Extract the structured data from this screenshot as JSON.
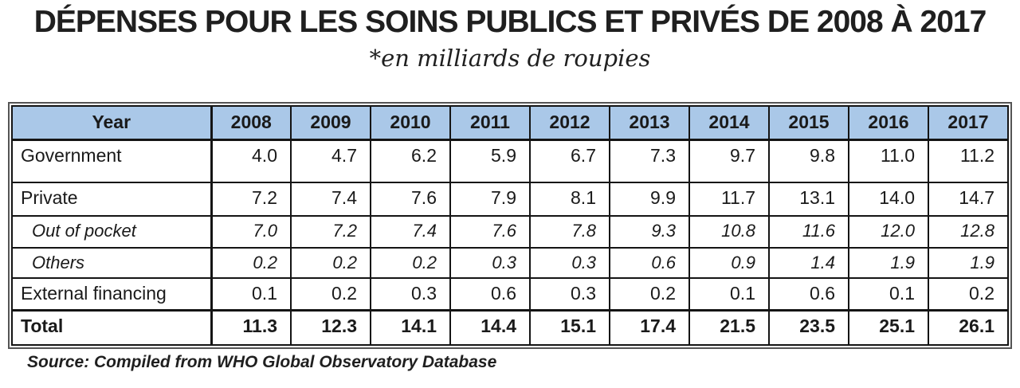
{
  "header": {
    "title": "DÉPENSES POUR LES SOINS PUBLICS ET PRIVÉS DE 2008 À 2017",
    "subtitle": "*en milliards de roupies"
  },
  "table": {
    "corner_label": "Year",
    "years": [
      "2008",
      "2009",
      "2010",
      "2011",
      "2012",
      "2013",
      "2014",
      "2015",
      "2016",
      "2017"
    ],
    "rows": [
      {
        "label": "Government",
        "style": "normal",
        "values": [
          "4.0",
          "4.7",
          "6.2",
          "5.9",
          "6.7",
          "7.3",
          "9.7",
          "9.8",
          "11.0",
          "11.2"
        ]
      },
      {
        "label": "Private",
        "style": "normal",
        "values": [
          "7.2",
          "7.4",
          "7.6",
          "7.9",
          "8.1",
          "9.9",
          "11.7",
          "13.1",
          "14.0",
          "14.7"
        ]
      },
      {
        "label": "Out of pocket",
        "style": "sub",
        "values": [
          "7.0",
          "7.2",
          "7.4",
          "7.6",
          "7.8",
          "9.3",
          "10.8",
          "11.6",
          "12.0",
          "12.8"
        ]
      },
      {
        "label": "Others",
        "style": "sub",
        "values": [
          "0.2",
          "0.2",
          "0.2",
          "0.3",
          "0.3",
          "0.6",
          "0.9",
          "1.4",
          "1.9",
          "1.9"
        ]
      },
      {
        "label": "External financing",
        "style": "normal",
        "values": [
          "0.1",
          "0.2",
          "0.3",
          "0.6",
          "0.3",
          "0.2",
          "0.1",
          "0.6",
          "0.1",
          "0.2"
        ]
      },
      {
        "label": "Total",
        "style": "bold",
        "values": [
          "11.3",
          "12.3",
          "14.1",
          "14.4",
          "15.1",
          "17.4",
          "21.5",
          "23.5",
          "25.1",
          "26.1"
        ]
      }
    ]
  },
  "footer": {
    "source": "Source: Compiled from WHO Global Observatory Database"
  },
  "colors": {
    "header_fill": "#aac8e8",
    "border": "#141414",
    "text": "#1f1f1f"
  },
  "chart_data": {
    "type": "table",
    "title": "DÉPENSES POUR LES SOINS PUBLICS ET PRIVÉS DE 2008 À 2017",
    "subtitle": "*en milliards de roupies",
    "unit": "milliards de roupies",
    "categories": [
      "2008",
      "2009",
      "2010",
      "2011",
      "2012",
      "2013",
      "2014",
      "2015",
      "2016",
      "2017"
    ],
    "series": [
      {
        "name": "Government",
        "values": [
          4.0,
          4.7,
          6.2,
          5.9,
          6.7,
          7.3,
          9.7,
          9.8,
          11.0,
          11.2
        ]
      },
      {
        "name": "Private",
        "values": [
          7.2,
          7.4,
          7.6,
          7.9,
          8.1,
          9.9,
          11.7,
          13.1,
          14.0,
          14.7
        ]
      },
      {
        "name": "Out of pocket",
        "values": [
          7.0,
          7.2,
          7.4,
          7.6,
          7.8,
          9.3,
          10.8,
          11.6,
          12.0,
          12.8
        ]
      },
      {
        "name": "Others",
        "values": [
          0.2,
          0.2,
          0.2,
          0.3,
          0.3,
          0.6,
          0.9,
          1.4,
          1.9,
          1.9
        ]
      },
      {
        "name": "External financing",
        "values": [
          0.1,
          0.2,
          0.3,
          0.6,
          0.3,
          0.2,
          0.1,
          0.6,
          0.1,
          0.2
        ]
      },
      {
        "name": "Total",
        "values": [
          11.3,
          12.3,
          14.1,
          14.4,
          15.1,
          17.4,
          21.5,
          23.5,
          25.1,
          26.1
        ]
      }
    ],
    "source": "Source: Compiled from WHO Global Observatory Database"
  }
}
